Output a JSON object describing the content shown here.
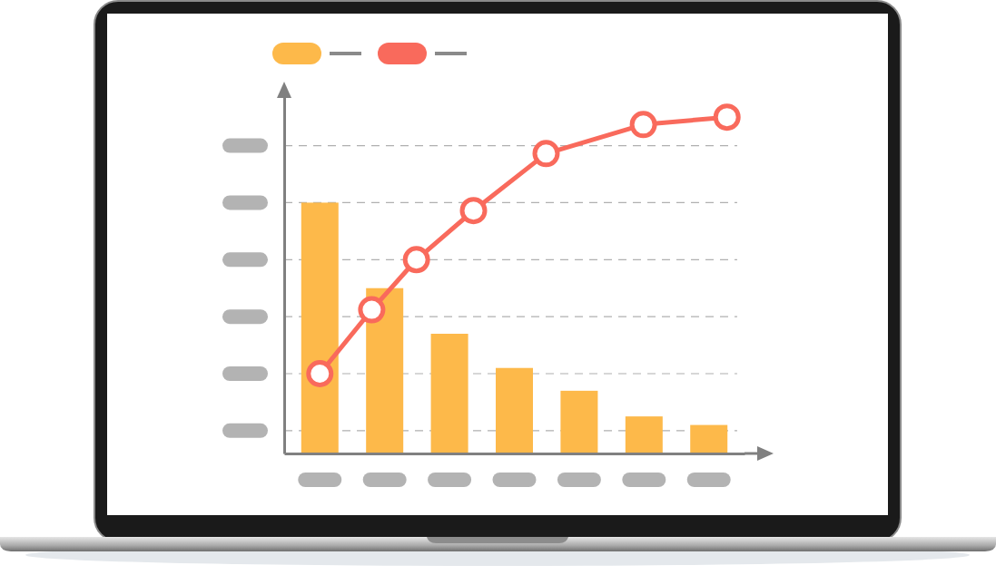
{
  "chart_data": {
    "type": "bar",
    "categories": [
      null,
      null,
      null,
      null,
      null,
      null,
      null
    ],
    "series": [
      {
        "type": "bar",
        "color": "#fdb94a",
        "values": [
          5.0,
          3.5,
          2.7,
          2.1,
          1.7,
          1.25,
          1.1
        ]
      },
      {
        "type": "line",
        "color": "#f96a5c",
        "marker": "circle",
        "x": [
          0,
          0.8,
          1.49,
          2.37,
          3.49,
          4.99,
          6.28
        ],
        "values": [
          2.0,
          3.12,
          4.0,
          4.86,
          5.86,
          6.37,
          6.5
        ]
      }
    ],
    "ylim": [
      0.6,
      6.9
    ],
    "yticks": [
      1,
      2,
      3,
      4,
      5,
      6
    ],
    "grid": true,
    "legend": "top",
    "tick_labels": false
  }
}
